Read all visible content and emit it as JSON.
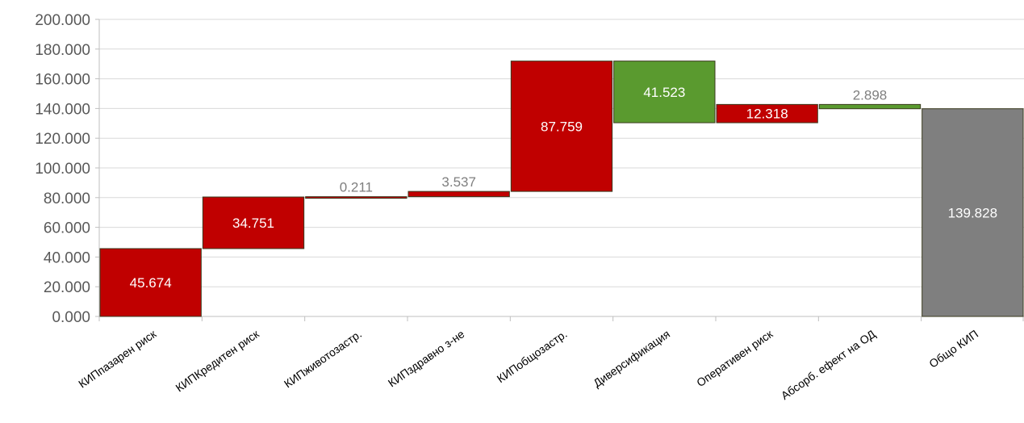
{
  "chart_data": {
    "type": "bar",
    "subtype": "waterfall",
    "title": "",
    "xlabel": "",
    "ylabel": "",
    "ylim": [
      0,
      200
    ],
    "yticks": [
      "0.000",
      "20.000",
      "40.000",
      "60.000",
      "80.000",
      "100.000",
      "120.000",
      "140.000",
      "160.000",
      "180.000",
      "200.000"
    ],
    "grid": true,
    "categories": [
      "КИПпазарен риск",
      "КИПКредитен риск",
      "КИПживотозастр.",
      "КИПздравно з-не",
      "КИПобщозастр.",
      "Диверсификация",
      "Оперативен риск",
      "Абсорб. ефект на ОД",
      "Общо КИП"
    ],
    "bars": [
      {
        "start": 0,
        "end": 45.674,
        "label": "45.674",
        "kind": "increase"
      },
      {
        "start": 45.674,
        "end": 80.425,
        "label": "34.751",
        "kind": "increase"
      },
      {
        "start": 80.425,
        "end": 80.636,
        "label": "0.211",
        "kind": "increase"
      },
      {
        "start": 80.636,
        "end": 84.173,
        "label": "3.537",
        "kind": "increase"
      },
      {
        "start": 84.173,
        "end": 171.932,
        "label": "87.759",
        "kind": "increase"
      },
      {
        "start": 171.932,
        "end": 130.409,
        "label": "41.523",
        "kind": "decrease"
      },
      {
        "start": 130.409,
        "end": 142.727,
        "label": "12.318",
        "kind": "increase"
      },
      {
        "start": 142.727,
        "end": 139.829,
        "label": "2.898",
        "kind": "decrease"
      },
      {
        "start": 0,
        "end": 139.828,
        "label": "139.828",
        "kind": "total"
      }
    ],
    "colors": {
      "increase": "#c00000",
      "decrease": "#5a9a2f",
      "total": "#7f7f7f",
      "bar_edge": "#3b3b1f",
      "grid": "#d9d9d9",
      "axis": "#bfbfbf",
      "label_inside": "#ffffff",
      "label_outside": "#7f7f7f"
    }
  }
}
